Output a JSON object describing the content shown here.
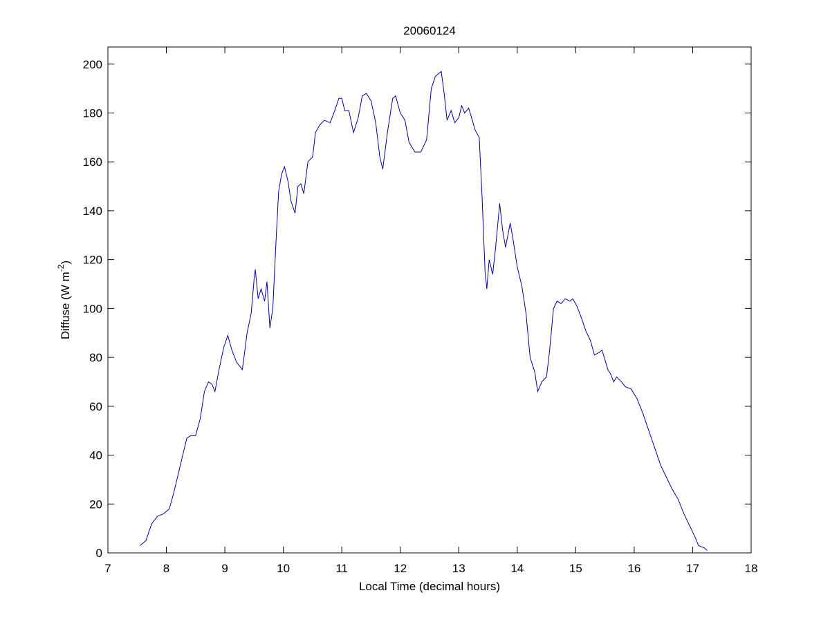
{
  "chart_data": {
    "type": "line",
    "title": "20060124",
    "x_label": "Local Time (decimal hours)",
    "y_label": {
      "text": "Diffuse (W m",
      "superscript": "-2",
      "suffix": ")"
    },
    "xlim": [
      7,
      18
    ],
    "xticks": [
      7,
      8,
      9,
      10,
      11,
      12,
      13,
      14,
      15,
      16,
      17,
      18
    ],
    "ylim": [
      0,
      207
    ],
    "yticks": [
      0,
      20,
      40,
      60,
      80,
      100,
      120,
      140,
      160,
      180,
      200
    ],
    "series": [
      {
        "color": "#0000a0",
        "x": [
          7.55,
          7.65,
          7.75,
          7.85,
          7.95,
          8.05,
          8.12,
          8.2,
          8.28,
          8.35,
          8.42,
          8.5,
          8.58,
          8.65,
          8.72,
          8.78,
          8.83,
          8.9,
          8.98,
          9.05,
          9.12,
          9.2,
          9.3,
          9.38,
          9.45,
          9.5,
          9.52,
          9.57,
          9.62,
          9.68,
          9.72,
          9.77,
          9.82,
          9.88,
          9.92,
          9.97,
          10.02,
          10.08,
          10.13,
          10.2,
          10.25,
          10.3,
          10.35,
          10.42,
          10.5,
          10.55,
          10.62,
          10.7,
          10.8,
          10.88,
          10.95,
          11.0,
          11.05,
          11.12,
          11.2,
          11.28,
          11.35,
          11.42,
          11.5,
          11.58,
          11.65,
          11.7,
          11.78,
          11.87,
          11.92,
          12.0,
          12.08,
          12.15,
          12.25,
          12.35,
          12.45,
          12.53,
          12.6,
          12.65,
          12.7,
          12.75,
          12.8,
          12.87,
          12.93,
          13.0,
          13.05,
          13.1,
          13.17,
          13.22,
          13.28,
          13.35,
          13.4,
          13.45,
          13.48,
          13.52,
          13.58,
          13.63,
          13.7,
          13.75,
          13.8,
          13.88,
          13.93,
          14.0,
          14.08,
          14.15,
          14.22,
          14.3,
          14.35,
          14.42,
          14.5,
          14.55,
          14.62,
          14.68,
          14.75,
          14.82,
          14.9,
          14.95,
          15.02,
          15.1,
          15.17,
          15.25,
          15.32,
          15.4,
          15.45,
          15.5,
          15.55,
          15.6,
          15.65,
          15.7,
          15.78,
          15.85,
          15.95,
          16.05,
          16.15,
          16.25,
          16.35,
          16.45,
          16.55,
          16.65,
          16.75,
          16.85,
          16.95,
          17.05,
          17.1,
          17.2,
          17.25
        ],
        "values": [
          3,
          5,
          12,
          15,
          16,
          18,
          24,
          32,
          40,
          47,
          48,
          48,
          55,
          66,
          70,
          69,
          66,
          75,
          84,
          89,
          83,
          78,
          75,
          90,
          98,
          112,
          116,
          104,
          108,
          103,
          111,
          92,
          100,
          130,
          148,
          155,
          158,
          152,
          144,
          139,
          150,
          151,
          147,
          160,
          162,
          172,
          175,
          177,
          176,
          181,
          186,
          186,
          181,
          181,
          172,
          178,
          187,
          188,
          185,
          176,
          162,
          157,
          172,
          186,
          187,
          180,
          177,
          168,
          164,
          164,
          169,
          190,
          195,
          196,
          197,
          188,
          177,
          181,
          176,
          178,
          183,
          180,
          182,
          178,
          173,
          170,
          145,
          115,
          108,
          120,
          114,
          125,
          143,
          132,
          125,
          135,
          128,
          117,
          109,
          98,
          80,
          74,
          66,
          70,
          72,
          82,
          100,
          103,
          102,
          104,
          103,
          104,
          101,
          96,
          91,
          87,
          81,
          82,
          83,
          79,
          75,
          73,
          70,
          72,
          70,
          68,
          67,
          63,
          57,
          50,
          43,
          36,
          31,
          26,
          22,
          16,
          11,
          6,
          3,
          2,
          1
        ]
      }
    ]
  }
}
